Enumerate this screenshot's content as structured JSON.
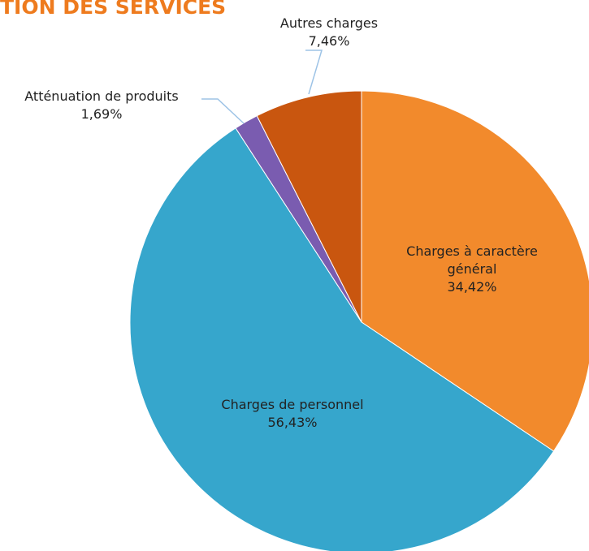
{
  "chart_data": {
    "type": "pie",
    "title": "TION DES SERVICES",
    "categories": [
      "Charges à caractère général",
      "Charges de personnel",
      "Atténuation de produits",
      "Autres charges"
    ],
    "values": [
      34.42,
      56.43,
      1.69,
      7.46
    ],
    "value_labels": [
      "34,42%",
      "56,43%",
      "1,69%",
      "7,46%"
    ],
    "colors": [
      "#f28a2c",
      "#36a6cc",
      "#7a5cb0",
      "#c9560f"
    ]
  }
}
